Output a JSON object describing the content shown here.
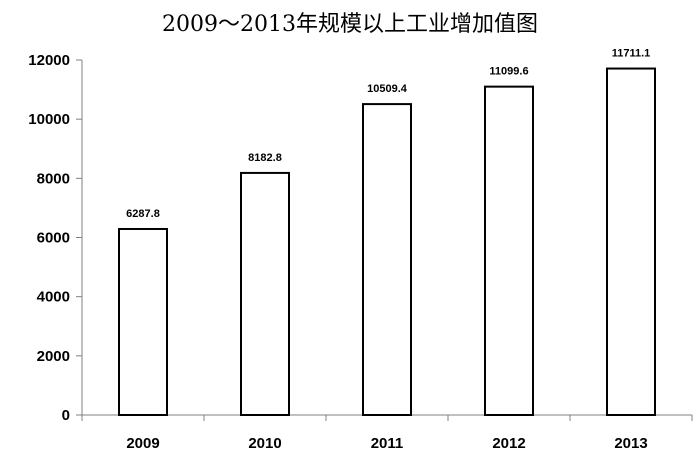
{
  "chart_data": {
    "type": "bar",
    "title": "2009～2013年规模以上工业增加值图",
    "categories": [
      "2009",
      "2010",
      "2011",
      "2012",
      "2013"
    ],
    "values": [
      6287.8,
      8182.8,
      10509.4,
      11099.6,
      11711.1
    ],
    "value_labels": [
      "6287.8",
      "8182.8",
      "10509.4",
      "11099.6",
      "11711.1"
    ],
    "ylim": [
      0,
      12000
    ],
    "yticks": [
      0,
      2000,
      4000,
      6000,
      8000,
      10000,
      12000
    ],
    "ytick_labels": [
      "0",
      "2000",
      "4000",
      "6000",
      "8000",
      "10000",
      "12000"
    ],
    "xlabel": "",
    "ylabel": "",
    "grid": false,
    "legend": "none",
    "bar_fill": "#ffffff",
    "bar_stroke": "#000000"
  }
}
